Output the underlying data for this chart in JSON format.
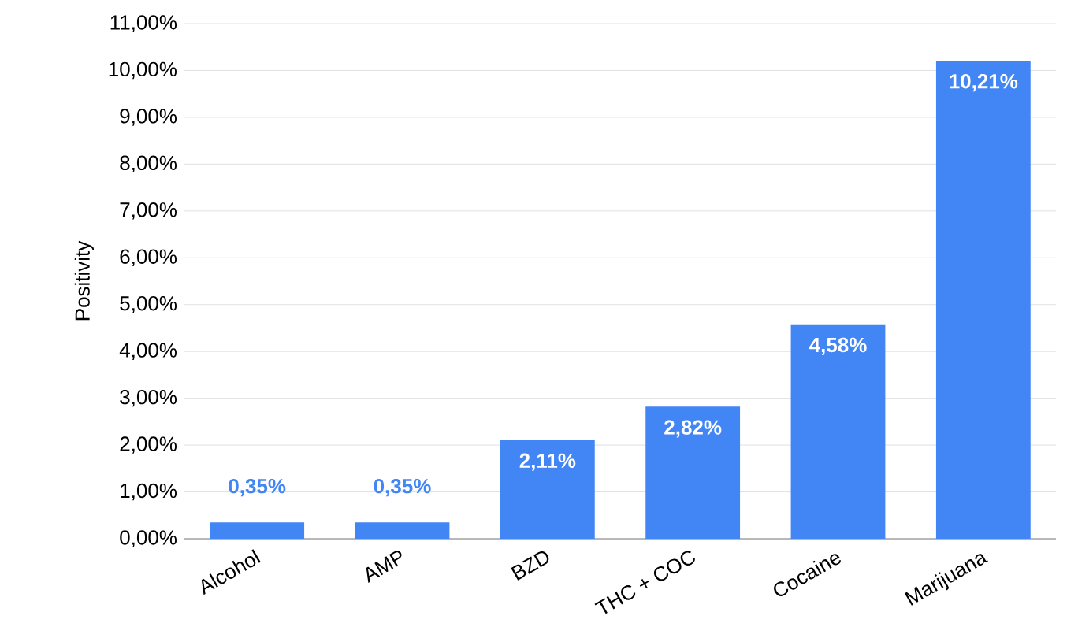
{
  "chart_data": {
    "type": "bar",
    "ylabel": "Positivity",
    "categories": [
      "Alcohol",
      "AMP",
      "BZD",
      "THC + COC",
      "Cocaine",
      "Marijuana"
    ],
    "values": [
      0.35,
      0.35,
      2.11,
      2.82,
      4.58,
      10.21
    ],
    "value_labels": [
      "0,35%",
      "0,35%",
      "2,11%",
      "2,82%",
      "4,58%",
      "10,21%"
    ],
    "color": "#4285f4",
    "grid": "y",
    "ylim": [
      0,
      11
    ],
    "yticks": [
      {
        "value": 0,
        "label": "0,00%"
      },
      {
        "value": 1,
        "label": "1,00%"
      },
      {
        "value": 2,
        "label": "2,00%"
      },
      {
        "value": 3,
        "label": "3,00%"
      },
      {
        "value": 4,
        "label": "4,00%"
      },
      {
        "value": 5,
        "label": "5,00%"
      },
      {
        "value": 6,
        "label": "6,00%"
      },
      {
        "value": 7,
        "label": "7,00%"
      },
      {
        "value": 8,
        "label": "8,00%"
      },
      {
        "value": 9,
        "label": "9,00%"
      },
      {
        "value": 10,
        "label": "10,00%"
      },
      {
        "value": 11,
        "label": "11,00%"
      }
    ]
  }
}
